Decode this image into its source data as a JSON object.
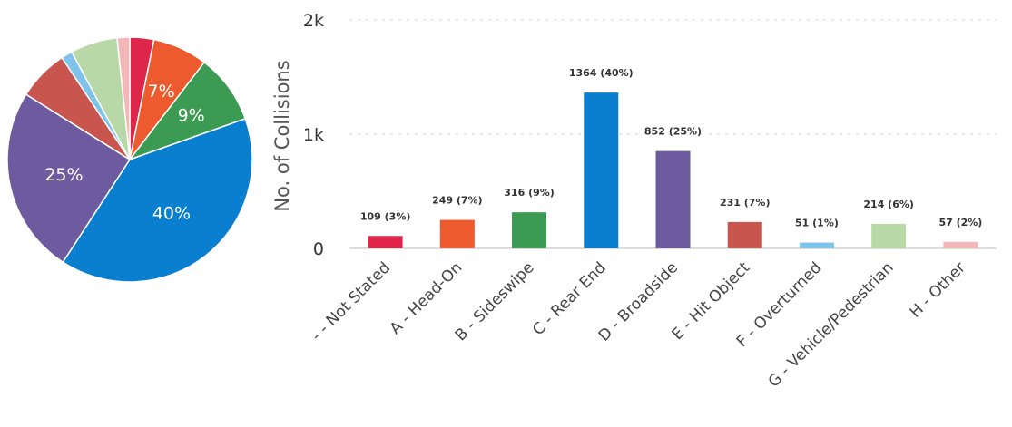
{
  "chart_data": [
    {
      "type": "pie",
      "categories": [
        "- - Not Stated",
        "A - Head-On",
        "B - Sideswipe",
        "C - Rear End",
        "D - Broadside",
        "E - Hit Object",
        "F - Overturned",
        "G - Vehicle/Pedestrian",
        "H - Other"
      ],
      "values": [
        109,
        249,
        316,
        1364,
        852,
        231,
        51,
        214,
        57
      ],
      "slice_labels": [
        "",
        "7%",
        "9%",
        "40%",
        "25%",
        "",
        "",
        "",
        ""
      ],
      "colors": [
        "#e0254a",
        "#ec5a2e",
        "#3c9b52",
        "#0a7fcf",
        "#6e5a9e",
        "#c9554f",
        "#7ec3ea",
        "#b9d8a8",
        "#f4b7b7"
      ]
    },
    {
      "type": "bar",
      "categories": [
        "- - Not Stated",
        "A - Head-On",
        "B - Sideswipe",
        "C - Rear End",
        "D - Broadside",
        "E - Hit Object",
        "F - Overturned",
        "G - Vehicle/Pedestrian",
        "H - Other"
      ],
      "values": [
        109,
        249,
        316,
        1364,
        852,
        231,
        51,
        214,
        57
      ],
      "data_labels": [
        "109 (3%)",
        "249 (7%)",
        "316 (9%)",
        "1364 (40%)",
        "852 (25%)",
        "231 (7%)",
        "51 (1%)",
        "214 (6%)",
        "57 (2%)"
      ],
      "colors": [
        "#e0254a",
        "#ec5a2e",
        "#3c9b52",
        "#0a7fcf",
        "#6e5a9e",
        "#c9554f",
        "#7ec3ea",
        "#b9d8a8",
        "#f4b7b7"
      ],
      "ylabel": "No. of Collisions",
      "xlabel": "",
      "yticks": [
        0,
        1000,
        2000
      ],
      "ytick_labels": [
        "0",
        "1k",
        "2k"
      ],
      "ylim": [
        0,
        2000
      ],
      "grid": true,
      "legend": "none"
    }
  ]
}
